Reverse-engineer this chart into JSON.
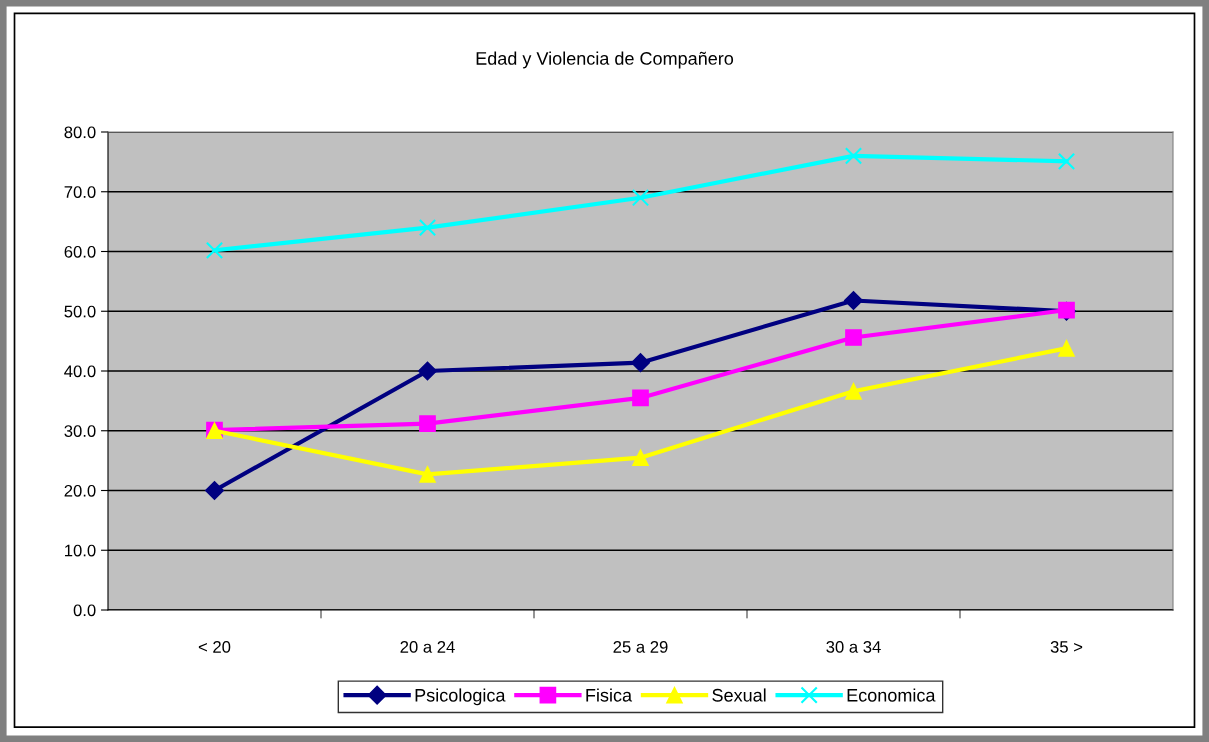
{
  "chart_data": {
    "type": "line",
    "title": "Edad y Violencia de Compañero",
    "categories": [
      "< 20",
      "20 a 24",
      "25 a 29",
      "30 a 34",
      "35 >"
    ],
    "series": [
      {
        "name": "Psicologica",
        "color": "#000080",
        "marker": "diamond",
        "values": [
          20.0,
          40.0,
          41.4,
          51.8,
          50.0
        ]
      },
      {
        "name": "Fisica",
        "color": "#ff00ff",
        "marker": "square",
        "values": [
          30.1,
          31.2,
          35.5,
          45.6,
          50.2
        ]
      },
      {
        "name": "Sexual",
        "color": "#ffff00",
        "marker": "triangle",
        "values": [
          30.0,
          22.7,
          25.5,
          36.6,
          43.8
        ]
      },
      {
        "name": "Economica",
        "color": "#00ffff",
        "marker": "cross",
        "values": [
          60.2,
          64.0,
          69.0,
          76.0,
          75.1
        ]
      }
    ],
    "ylim": [
      0,
      80
    ],
    "yticks": [
      {
        "value": 0,
        "label": "0.0"
      },
      {
        "value": 10,
        "label": "10.0"
      },
      {
        "value": 20,
        "label": "20.0"
      },
      {
        "value": 30,
        "label": "30.0"
      },
      {
        "value": 40,
        "label": "40.0"
      },
      {
        "value": 50,
        "label": "50.0"
      },
      {
        "value": 60,
        "label": "60.0"
      },
      {
        "value": 70,
        "label": "70.0"
      },
      {
        "value": 80,
        "label": "80.0"
      }
    ],
    "grid": "y",
    "legend": "bottom",
    "line_style": "solid"
  }
}
